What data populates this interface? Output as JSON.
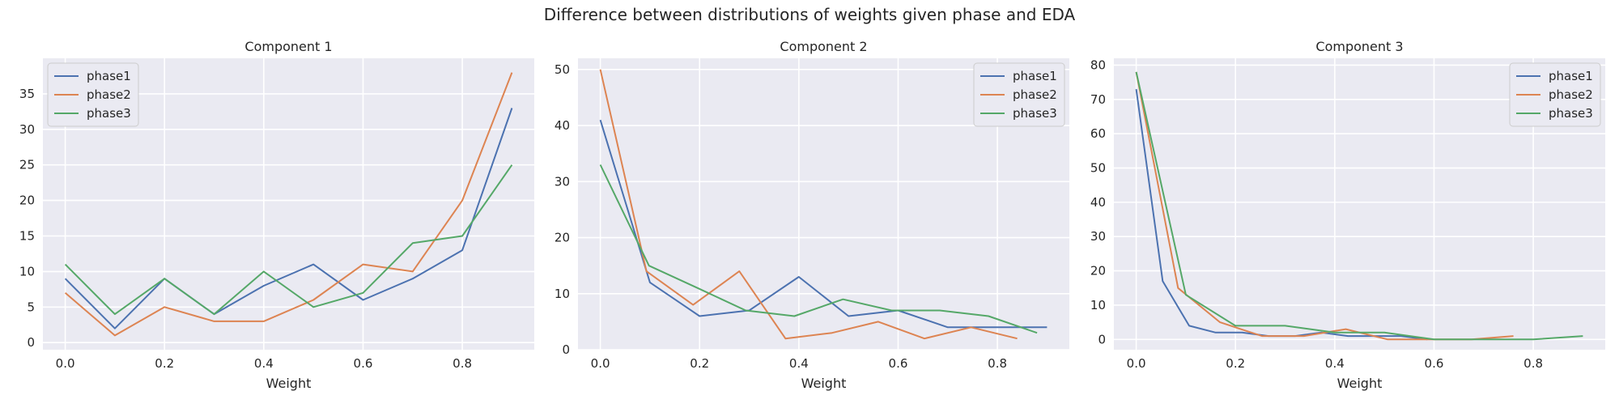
{
  "figure": {
    "title": "Difference between distributions of weights given phase and EDA"
  },
  "colors": {
    "plot_background": "#eaeaf2",
    "grid": "#ffffff",
    "phase1": "#4c72b0",
    "phase2": "#dd8452",
    "phase3": "#55a868",
    "legend_background": "#eaeaf2",
    "legend_border": "#cccccc"
  },
  "chart_data": [
    {
      "type": "line",
      "title": "Component 1",
      "xlabel": "Weight",
      "ylabel": "",
      "xlim": [
        -0.045,
        0.945
      ],
      "ylim": [
        -1,
        40
      ],
      "xticks": [
        0.0,
        0.2,
        0.4,
        0.6,
        0.8
      ],
      "yticks": [
        0,
        5,
        10,
        15,
        20,
        25,
        30,
        35
      ],
      "xtick_labels": [
        "0.0",
        "0.2",
        "0.4",
        "0.6",
        "0.8"
      ],
      "ytick_labels": [
        "0",
        "5",
        "10",
        "15",
        "20",
        "25",
        "30",
        "35"
      ],
      "grid": true,
      "legend": "upper left",
      "series": [
        {
          "name": "phase1",
          "x": [
            0.0,
            0.1,
            0.2,
            0.3,
            0.4,
            0.5,
            0.6,
            0.7,
            0.8,
            0.9
          ],
          "y": [
            9,
            2,
            9,
            4,
            8,
            11,
            6,
            9,
            13,
            33
          ]
        },
        {
          "name": "phase2",
          "x": [
            0.0,
            0.1,
            0.2,
            0.3,
            0.4,
            0.5,
            0.6,
            0.7,
            0.8,
            0.9
          ],
          "y": [
            7,
            1,
            5,
            3,
            3,
            6,
            11,
            10,
            20,
            38
          ]
        },
        {
          "name": "phase3",
          "x": [
            0.0,
            0.1,
            0.2,
            0.3,
            0.4,
            0.5,
            0.6,
            0.7,
            0.8,
            0.9
          ],
          "y": [
            11,
            4,
            9,
            4,
            10,
            5,
            7,
            14,
            15,
            25
          ]
        }
      ]
    },
    {
      "type": "line",
      "title": "Component 2",
      "xlabel": "Weight",
      "ylabel": "",
      "xlim": [
        -0.045,
        0.945
      ],
      "ylim": [
        0,
        52
      ],
      "xticks": [
        0.0,
        0.2,
        0.4,
        0.6,
        0.8
      ],
      "yticks": [
        0,
        10,
        20,
        30,
        40,
        50
      ],
      "xtick_labels": [
        "0.0",
        "0.2",
        "0.4",
        "0.6",
        "0.8"
      ],
      "ytick_labels": [
        "0",
        "10",
        "20",
        "30",
        "40",
        "50"
      ],
      "grid": true,
      "legend": "upper right",
      "series": [
        {
          "name": "phase1",
          "x": [
            0.0,
            0.1,
            0.2,
            0.3,
            0.4,
            0.5,
            0.6,
            0.7,
            0.8,
            0.9
          ],
          "y": [
            41,
            12,
            6,
            7,
            13,
            6,
            7,
            4,
            4,
            4
          ]
        },
        {
          "name": "phase2",
          "x": [
            0.0,
            0.093,
            0.187,
            0.28,
            0.373,
            0.467,
            0.56,
            0.653,
            0.747,
            0.84
          ],
          "y": [
            50,
            14,
            8,
            14,
            2,
            3,
            5,
            2,
            4,
            2
          ]
        },
        {
          "name": "phase3",
          "x": [
            0.0,
            0.098,
            0.196,
            0.293,
            0.391,
            0.489,
            0.587,
            0.684,
            0.782,
            0.88
          ],
          "y": [
            33,
            15,
            11,
            7,
            6,
            9,
            7,
            7,
            6,
            3
          ]
        }
      ]
    },
    {
      "type": "line",
      "title": "Component 3",
      "xlabel": "Weight",
      "ylabel": "",
      "xlim": [
        -0.045,
        0.945
      ],
      "ylim": [
        -3,
        82
      ],
      "xticks": [
        0.0,
        0.2,
        0.4,
        0.6,
        0.8
      ],
      "yticks": [
        0,
        10,
        20,
        30,
        40,
        50,
        60,
        70,
        80
      ],
      "xtick_labels": [
        "0.0",
        "0.2",
        "0.4",
        "0.6",
        "0.8"
      ],
      "ytick_labels": [
        "0",
        "10",
        "20",
        "30",
        "40",
        "50",
        "60",
        "70",
        "80"
      ],
      "grid": true,
      "legend": "upper right",
      "series": [
        {
          "name": "phase1",
          "x": [
            0.0,
            0.0533,
            0.1067,
            0.16,
            0.2133,
            0.2667,
            0.32,
            0.3733,
            0.4267,
            0.48,
            0.5333,
            0.5867
          ],
          "y": [
            73,
            17,
            4,
            2,
            2,
            1,
            1,
            2,
            1,
            1,
            1,
            0
          ]
        },
        {
          "name": "phase2",
          "x": [
            0.0,
            0.0844,
            0.1689,
            0.2533,
            0.3378,
            0.4222,
            0.5067,
            0.5911,
            0.6756,
            0.76
          ],
          "y": [
            78,
            15,
            5,
            1,
            1,
            3,
            0,
            0,
            0,
            1
          ]
        },
        {
          "name": "phase3",
          "x": [
            0.0,
            0.1,
            0.2,
            0.3,
            0.4,
            0.5,
            0.6,
            0.7,
            0.8,
            0.9
          ],
          "y": [
            78,
            13,
            4,
            4,
            2,
            2,
            0,
            0,
            0,
            1
          ]
        }
      ]
    }
  ]
}
